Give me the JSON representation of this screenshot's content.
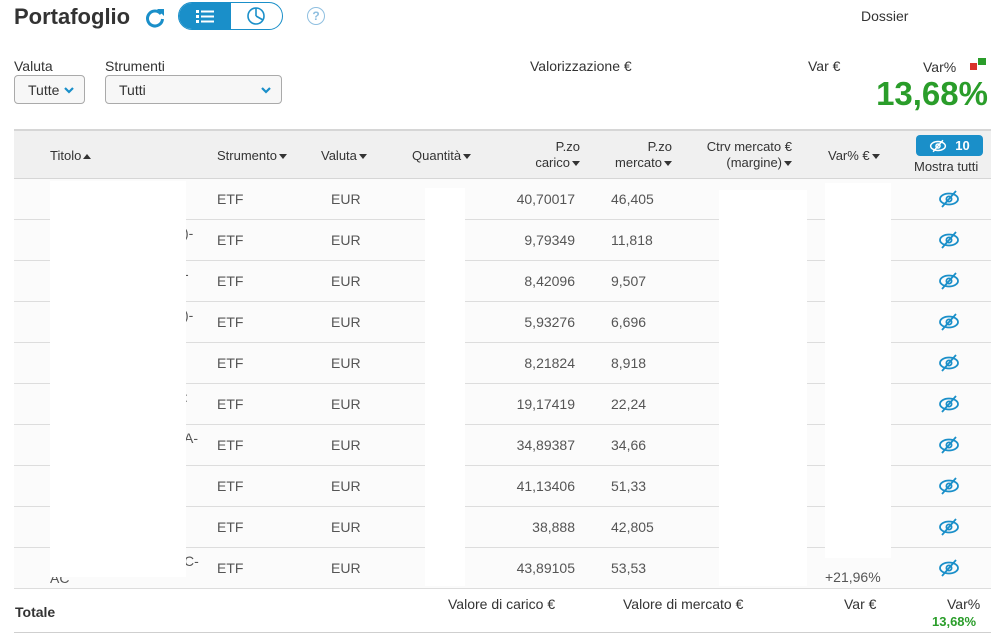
{
  "header": {
    "title": "Portafoglio",
    "dossier_label": "Dossier",
    "help_label": "?",
    "icons": {
      "refresh": "refresh-icon",
      "list_view": "list-view-icon",
      "chart_view": "pie-chart-icon",
      "help": "help-icon"
    }
  },
  "filters": {
    "currency": {
      "label": "Valuta",
      "value": "Tutte"
    },
    "instruments": {
      "label": "Strumenti",
      "value": "Tutti"
    }
  },
  "summary": {
    "valuation_label": "Valorizzazione €",
    "var_eur_label": "Var €",
    "var_pct_label": "Var%",
    "var_pct_value": "13,68%"
  },
  "table": {
    "columns": [
      {
        "key": "titolo",
        "label": "Titolo"
      },
      {
        "key": "strumento",
        "label": "Strumento"
      },
      {
        "key": "valuta",
        "label": "Valuta"
      },
      {
        "key": "quantita",
        "label": "Quantità"
      },
      {
        "key": "pzo_carico",
        "label_line1": "P.zo",
        "label_line2": "carico"
      },
      {
        "key": "pzo_mercato",
        "label_line1": "P.zo",
        "label_line2": "mercato"
      },
      {
        "key": "ctrv",
        "label_line1": "Ctrv mercato €",
        "label_line2": "(margine)"
      },
      {
        "key": "var_pct_eur",
        "label": "Var% €"
      }
    ],
    "show_all": {
      "count": "10",
      "label": "Mostra tutti"
    },
    "rows": [
      {
        "title_fragment": "",
        "instrument": "ETF",
        "currency": "EUR",
        "pzo_carico": "40,70017",
        "pzo_mercato": "46,405"
      },
      {
        "title_fragment": ")-",
        "instrument": "ETF",
        "currency": "EUR",
        "pzo_carico": "9,79349",
        "pzo_mercato": "11,818"
      },
      {
        "title_fragment": "-",
        "instrument": "ETF",
        "currency": "EUR",
        "pzo_carico": "8,42096",
        "pzo_mercato": "9,507"
      },
      {
        "title_fragment": ")-",
        "instrument": "ETF",
        "currency": "EUR",
        "pzo_carico": "5,93276",
        "pzo_mercato": "6,696"
      },
      {
        "title_fragment": "",
        "instrument": "ETF",
        "currency": "EUR",
        "pzo_carico": "8,21824",
        "pzo_mercato": "8,918"
      },
      {
        "title_fragment": ":",
        "instrument": "ETF",
        "currency": "EUR",
        "pzo_carico": "19,17419",
        "pzo_mercato": "22,24"
      },
      {
        "title_fragment": "A-",
        "instrument": "ETF",
        "currency": "EUR",
        "pzo_carico": "34,89387",
        "pzo_mercato": "34,66"
      },
      {
        "title_fragment": "",
        "instrument": "ETF",
        "currency": "EUR",
        "pzo_carico": "41,13406",
        "pzo_mercato": "51,33"
      },
      {
        "title_fragment": "",
        "instrument": "ETF",
        "currency": "EUR",
        "pzo_carico": "38,888",
        "pzo_mercato": "42,805"
      },
      {
        "title_fragment": "C-",
        "title_fragment_2": "AC",
        "instrument": "ETF",
        "currency": "EUR",
        "pzo_carico": "43,89105",
        "pzo_mercato": "53,53",
        "var_pct": "+21,96%"
      }
    ]
  },
  "totals": {
    "label": "Totale",
    "carico_label": "Valore di carico €",
    "mercato_label": "Valore di mercato €",
    "var_eur_label": "Var €",
    "var_pct_label": "Var%",
    "var_pct_value": "13,68%"
  },
  "colors": {
    "accent": "#1a8fc9",
    "positive": "#2a9d2a",
    "flag_red": "#d9342b",
    "flag_green": "#2a9d2a"
  }
}
